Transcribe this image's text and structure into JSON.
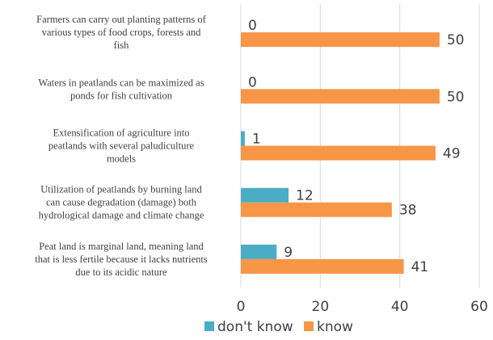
{
  "chart_data": {
    "type": "bar",
    "orientation": "horizontal",
    "categories": [
      [
        "Farmers can carry out planting patterns of",
        "various types of food crops, forests and",
        "fish"
      ],
      [
        "Waters in peatlands can be maximized as",
        "ponds for fish cultivation"
      ],
      [
        "Extensification of agriculture into",
        "peatlands with several paludiculture",
        "models"
      ],
      [
        "Utilization of peatlands by burning land",
        "can cause degradation (damage) both",
        "hydrological damage and climate change"
      ],
      [
        "Peat land is marginal land, meaning land",
        "that is less fertile because it lacks nutrients",
        "due to its acidic nature"
      ]
    ],
    "series": [
      {
        "name": "don't know",
        "color": "#4bacc6",
        "values": [
          0,
          0,
          1,
          12,
          9
        ]
      },
      {
        "name": "know",
        "color": "#f79646",
        "values": [
          50,
          50,
          49,
          38,
          41
        ]
      }
    ],
    "xlim": [
      0,
      60
    ],
    "xticks": [
      "0",
      "20",
      "40",
      "60"
    ],
    "grid": true,
    "legend": "bottom"
  }
}
